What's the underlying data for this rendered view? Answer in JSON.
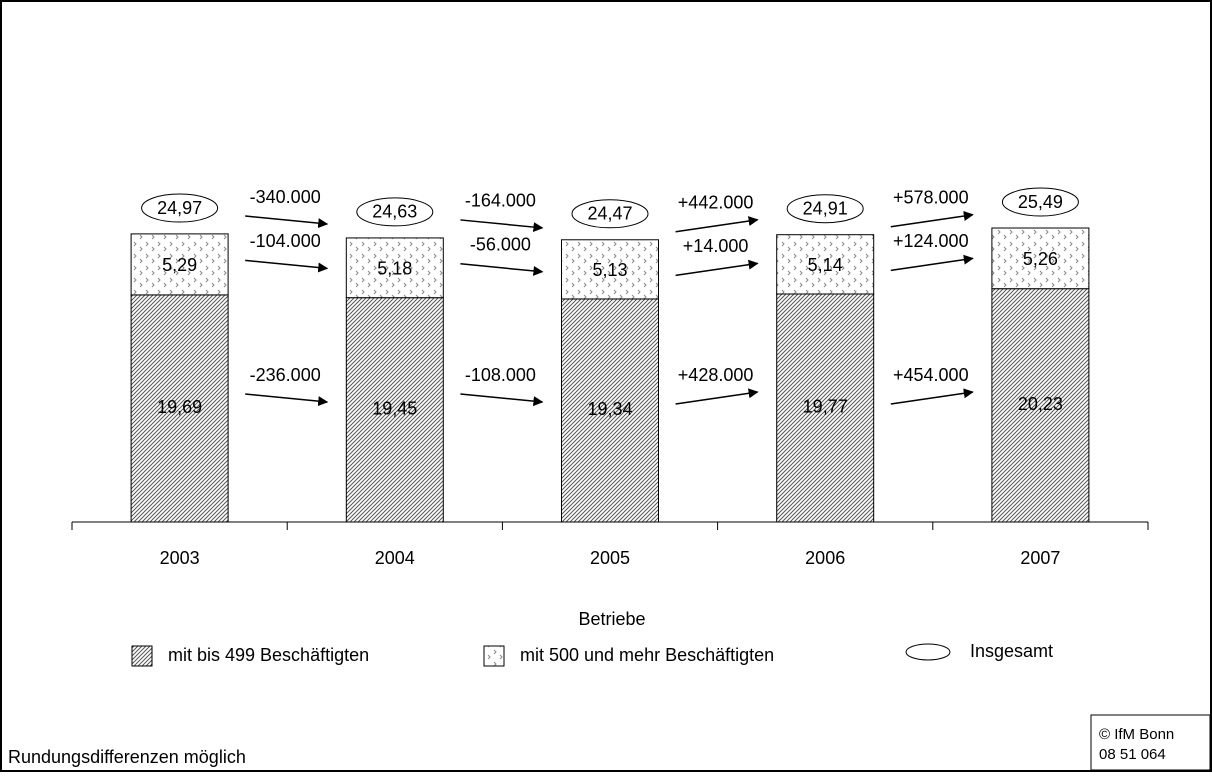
{
  "chart_data": {
    "type": "stacked-bar",
    "categories": [
      "2003",
      "2004",
      "2005",
      "2006",
      "2007"
    ],
    "series": [
      {
        "name": "mit bis 499 Beschäftigten",
        "color": "#000000",
        "values": [
          19.69,
          19.45,
          19.34,
          19.77,
          20.23
        ],
        "value_labels": [
          "19,69",
          "19,45",
          "19,34",
          "19,77",
          "20,23"
        ]
      },
      {
        "name": "mit 500 und mehr Beschäftigten",
        "color": "#000000",
        "values": [
          5.29,
          5.18,
          5.13,
          5.14,
          5.26
        ],
        "value_labels": [
          "5,29",
          "5,18",
          "5,13",
          "5,14",
          "5,26"
        ]
      }
    ],
    "totals": {
      "name": "Insgesamt",
      "values": [
        24.97,
        24.63,
        24.47,
        24.91,
        25.49
      ],
      "value_labels": [
        "24,97",
        "24,63",
        "24,47",
        "24,91",
        "25,49"
      ]
    },
    "changes": [
      {
        "values": [
          -340000,
          -164000,
          442000,
          578000
        ],
        "value_labels": [
          "-340.000",
          "-164.000",
          "+442.000",
          "+578.000"
        ]
      },
      {
        "values": [
          -104000,
          -56000,
          14000,
          124000
        ],
        "value_labels": [
          "-104.000",
          "-56.000",
          "+14.000",
          "+124.000"
        ]
      },
      {
        "values": [
          -236000,
          -108000,
          428000,
          454000
        ],
        "value_labels": [
          "-236.000",
          "-108.000",
          "+428.000",
          "+454.000"
        ]
      }
    ],
    "ylim": [
      0,
      30
    ],
    "legend_title": "Betriebe",
    "footnote": "Rundungsdifferenzen möglich",
    "source": [
      "© IfM Bonn",
      "08 51 064"
    ]
  }
}
